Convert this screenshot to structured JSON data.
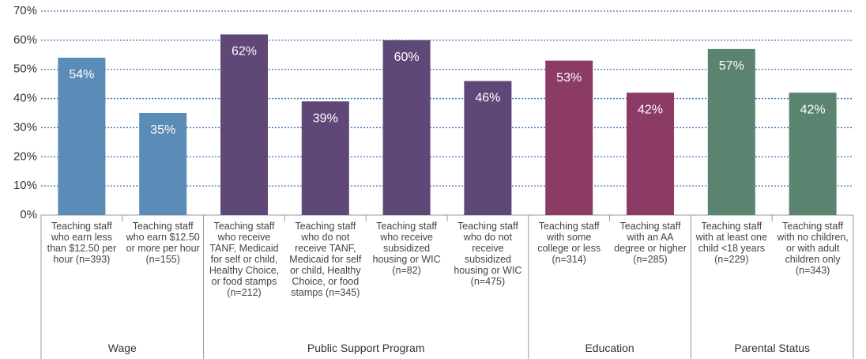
{
  "chart_data": {
    "type": "bar",
    "ylim": [
      0,
      70
    ],
    "yticks": [
      {
        "value": 0,
        "label": "0%"
      },
      {
        "value": 10,
        "label": "10%"
      },
      {
        "value": 20,
        "label": "20%"
      },
      {
        "value": 30,
        "label": "30%"
      },
      {
        "value": 40,
        "label": "40%"
      },
      {
        "value": 50,
        "label": "50%"
      },
      {
        "value": 60,
        "label": "60%"
      },
      {
        "value": 70,
        "label": "70%"
      }
    ],
    "grid": true,
    "groups": [
      {
        "name": "Wage",
        "color": "#5b8bb7",
        "categories": [
          "Teaching staff who earn less than $12.50 per hour (n=393)",
          "Teaching staff who earn $12.50 or more per hour (n=155)"
        ],
        "values": [
          54,
          35
        ],
        "value_labels": [
          "54%",
          "35%"
        ]
      },
      {
        "name": "Public Support Program",
        "color": "#5f4878",
        "categories": [
          "Teaching staff who receive TANF, Medicaid for self or child, Healthy Choice, or food stamps (n=212)",
          "Teaching staff who do not receive TANF, Medicaid for self or child, Healthy Choice, or food stamps (n=345)",
          "Teaching staff who receive subsidized housing or WIC (n=82)",
          "Teaching staff who do not receive subsidized housing or WIC (n=475)"
        ],
        "values": [
          62,
          39,
          60,
          46
        ],
        "value_labels": [
          "62%",
          "39%",
          "60%",
          "46%"
        ]
      },
      {
        "name": "Education",
        "color": "#8c3a66",
        "categories": [
          "Teaching staff with some college or less (n=314)",
          "Teaching staff with an AA degree or higher (n=285)"
        ],
        "values": [
          53,
          42
        ],
        "value_labels": [
          "53%",
          "42%"
        ]
      },
      {
        "name": "Parental Status",
        "color": "#5a8470",
        "categories": [
          "Teaching staff with at least one child <18 years (n=229)",
          "Teaching staff with no children, or with adult children only (n=343)"
        ],
        "values": [
          57,
          42
        ],
        "value_labels": [
          "57%",
          "42%"
        ]
      }
    ]
  }
}
